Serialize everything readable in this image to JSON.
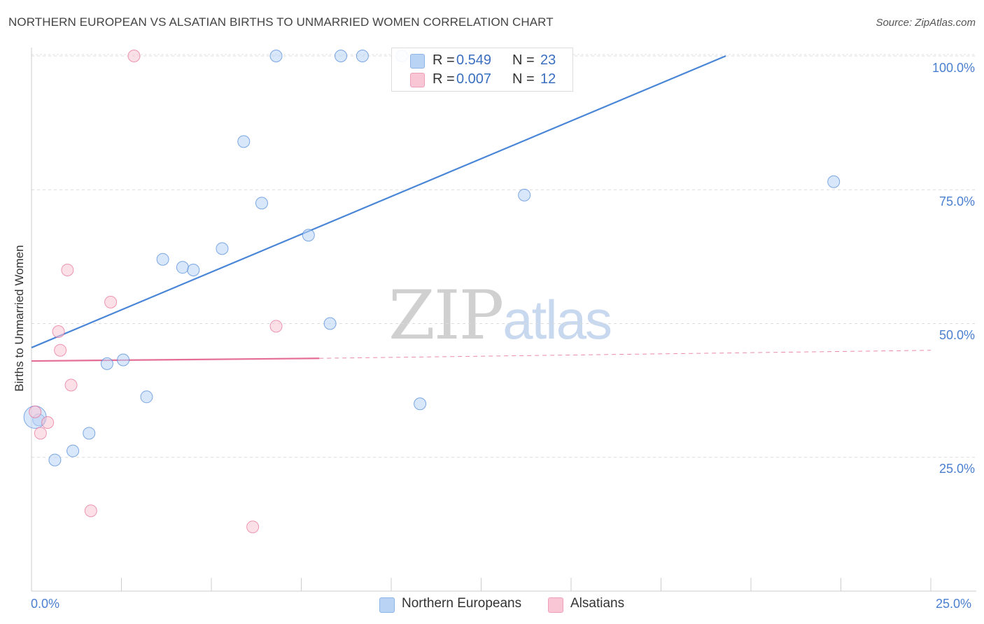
{
  "header": {
    "title": "NORTHERN EUROPEAN VS ALSATIAN BIRTHS TO UNMARRIED WOMEN CORRELATION CHART",
    "source": "Source: ZipAtlas.com"
  },
  "watermark": {
    "zip": "ZIP",
    "atlas": "atlas"
  },
  "legend": {
    "rows": [
      {
        "r_label": "R =",
        "r_value": "0.549",
        "n_label": "N =",
        "n_value": "23",
        "color": "#b9d3f5"
      },
      {
        "r_label": "R =",
        "r_value": "0.007",
        "n_label": "N =",
        "n_value": "12",
        "color": "#f9c6d6"
      }
    ]
  },
  "bottom_legend": [
    {
      "label": "Northern Europeans",
      "color": "#b9d3f5"
    },
    {
      "label": "Alsatians",
      "color": "#f9c6d6"
    }
  ],
  "chart_data": {
    "type": "scatter",
    "title": "NORTHERN EUROPEAN VS ALSATIAN BIRTHS TO UNMARRIED WOMEN CORRELATION CHART",
    "xlabel": "",
    "ylabel": "Births to Unmarried Women",
    "xlim": [
      0,
      25
    ],
    "ylim": [
      0,
      100
    ],
    "x_tick_labels": [
      "0.0%",
      "25.0%"
    ],
    "y_tick_labels": [
      "100.0%",
      "75.0%",
      "50.0%",
      "25.0%"
    ],
    "y_tick_values": [
      100,
      75,
      50,
      25
    ],
    "grid": true,
    "series": [
      {
        "name": "Northern Europeans",
        "color": "#4a86d8",
        "fill": "#b9d3f5",
        "x": [
          0.2,
          0.65,
          1.15,
          1.6,
          2.1,
          2.55,
          3.2,
          3.65,
          4.2,
          4.5,
          5.3,
          5.9,
          6.4,
          6.8,
          7.7,
          8.3,
          8.6,
          9.2,
          10.3,
          10.8,
          13.7,
          22.3,
          0.1
        ],
        "y": [
          32,
          24.5,
          26.2,
          29.5,
          42.5,
          43.2,
          36.3,
          62,
          60.5,
          60,
          64,
          84,
          72.5,
          100,
          66.5,
          50,
          100,
          100,
          100,
          35,
          74,
          76.5,
          32.5
        ],
        "size": [
          6,
          6,
          6,
          6,
          6,
          6,
          6,
          6,
          6,
          6,
          6,
          6,
          6,
          6,
          6,
          6,
          6,
          6,
          6,
          6,
          6,
          6,
          16
        ]
      },
      {
        "name": "Alsatians",
        "color": "#e56e96",
        "fill": "#f9c6d6",
        "x": [
          0.1,
          0.25,
          0.45,
          0.75,
          0.8,
          1.0,
          1.1,
          1.65,
          2.2,
          2.85,
          6.15,
          6.8
        ],
        "y": [
          33.5,
          29.5,
          31.5,
          48.5,
          45,
          60,
          38.5,
          15,
          54,
          100,
          12,
          49.5
        ],
        "size": [
          6,
          6,
          6,
          6,
          6,
          6,
          6,
          6,
          6,
          6,
          6,
          6
        ]
      }
    ],
    "trendlines": [
      {
        "series": "Northern Europeans",
        "x": [
          0,
          19.3
        ],
        "y": [
          45.5,
          100
        ],
        "style": "solid"
      },
      {
        "series": "Alsatians",
        "x": [
          0,
          8
        ],
        "y": [
          43,
          43.5
        ],
        "style": "solid"
      },
      {
        "series": "Alsatians",
        "x": [
          8,
          25
        ],
        "y": [
          43.5,
          45
        ],
        "style": "dashed"
      }
    ]
  }
}
